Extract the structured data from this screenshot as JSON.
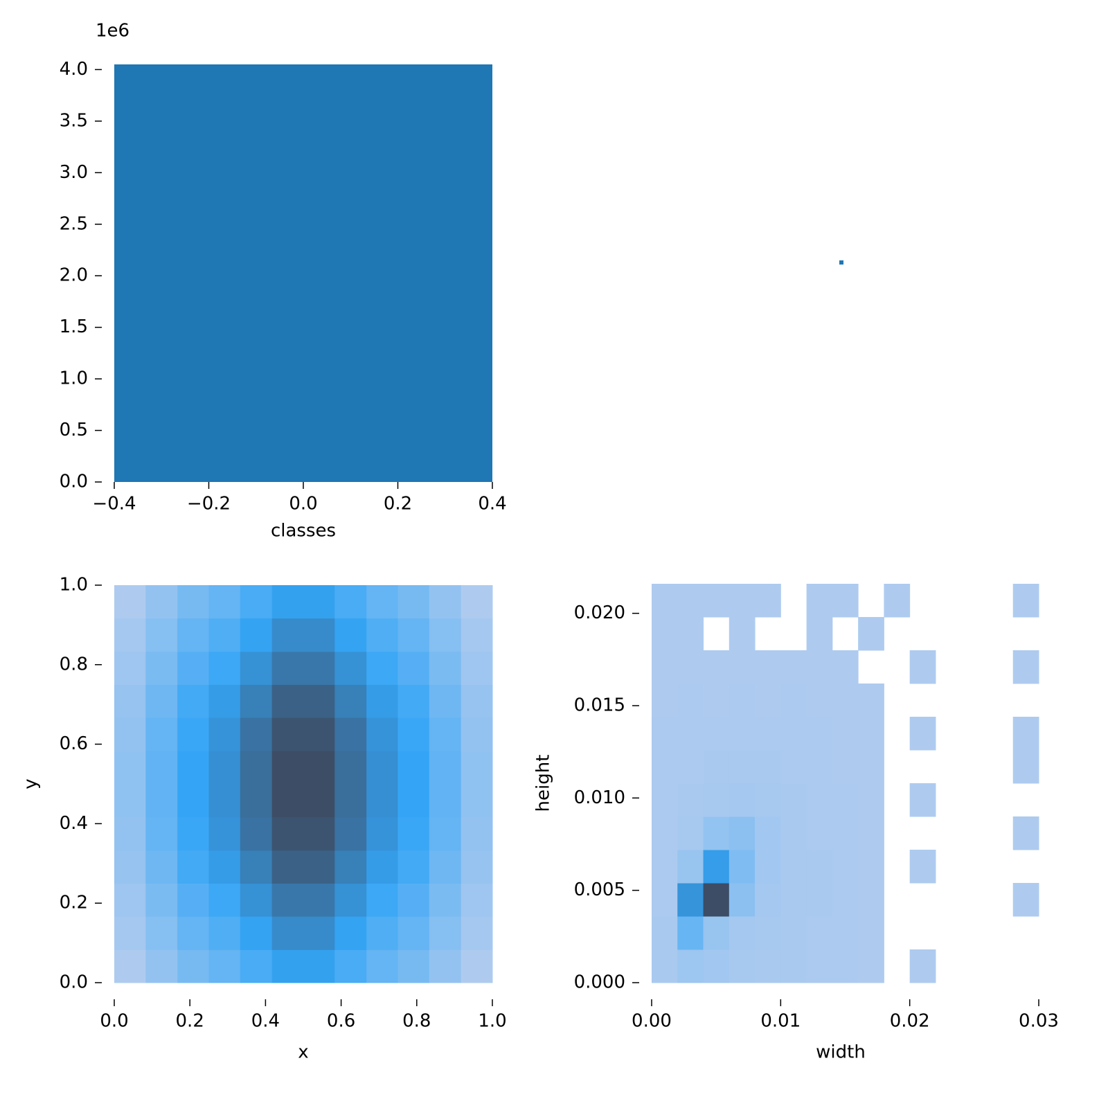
{
  "chart_data": [
    {
      "type": "histogram",
      "xlabel": "classes",
      "offset_text": "1e6",
      "bins": [
        -0.4,
        0.4
      ],
      "values": [
        4050000
      ],
      "color": "#1f77b4",
      "xlim": [
        -0.4,
        0.4
      ],
      "ylim": [
        0,
        4050000
      ],
      "xticks": [
        {
          "value": -0.4,
          "label": "−0.4"
        },
        {
          "value": -0.2,
          "label": "−0.2"
        },
        {
          "value": 0,
          "label": "0.0"
        },
        0.2,
        0.4
      ],
      "yticks": [
        {
          "value": 0,
          "label": "0.0"
        },
        {
          "value": 500000,
          "label": "0.5"
        },
        {
          "value": 1000000,
          "label": "1.0"
        },
        {
          "value": 1500000,
          "label": "1.5"
        },
        {
          "value": 2000000,
          "label": "2.0"
        },
        {
          "value": 2500000,
          "label": "2.5"
        },
        {
          "value": 3000000,
          "label": "3.0"
        },
        {
          "value": 3500000,
          "label": "3.5"
        },
        {
          "value": 4000000,
          "label": "4.0"
        }
      ]
    },
    {
      "type": "heatmap",
      "xlabel": "x",
      "ylabel": "y",
      "xbins": [
        0,
        0.083,
        0.167,
        0.25,
        0.333,
        0.417,
        0.5,
        0.583,
        0.667,
        0.75,
        0.833,
        0.917,
        1
      ],
      "ybins": [
        0,
        0.083,
        0.167,
        0.25,
        0.333,
        0.417,
        0.5,
        0.583,
        0.667,
        0.75,
        0.833,
        0.917,
        1
      ],
      "z": [
        [
          15,
          24,
          33,
          39,
          48,
          57,
          57,
          48,
          39,
          33,
          24,
          15
        ],
        [
          18,
          28,
          39,
          46,
          56,
          67,
          67,
          56,
          46,
          39,
          28,
          18
        ],
        [
          20,
          32,
          44,
          52,
          64,
          76,
          76,
          64,
          52,
          44,
          32,
          20
        ],
        [
          23,
          36,
          50,
          59,
          72,
          86,
          86,
          72,
          59,
          50,
          36,
          23
        ],
        [
          24,
          39,
          53,
          63,
          78,
          92,
          92,
          78,
          63,
          53,
          39,
          24
        ],
        [
          25,
          40,
          55,
          65,
          80,
          95,
          95,
          80,
          65,
          55,
          40,
          25
        ],
        [
          25,
          40,
          55,
          65,
          80,
          95,
          95,
          80,
          65,
          55,
          40,
          25
        ],
        [
          24,
          39,
          53,
          63,
          78,
          92,
          92,
          78,
          63,
          53,
          39,
          24
        ],
        [
          23,
          36,
          50,
          59,
          72,
          86,
          86,
          72,
          59,
          50,
          36,
          23
        ],
        [
          20,
          32,
          44,
          52,
          64,
          76,
          76,
          64,
          52,
          44,
          32,
          20
        ],
        [
          18,
          28,
          39,
          46,
          56,
          67,
          67,
          56,
          46,
          39,
          28,
          18
        ],
        [
          15,
          24,
          33,
          39,
          48,
          57,
          57,
          48,
          39,
          33,
          24,
          15
        ]
      ],
      "cmap": [
        "#aecbef",
        "#34a5f6",
        "#3d4d65"
      ],
      "vlim": [
        15,
        95
      ],
      "xlim": [
        0,
        1
      ],
      "ylim": [
        0,
        1
      ],
      "xticks": [
        {
          "value": 0,
          "label": "0.0"
        },
        0.2,
        0.4,
        0.6,
        0.8,
        {
          "value": 1,
          "label": "1.0"
        }
      ],
      "yticks": [
        {
          "value": 0,
          "label": "0.0"
        },
        0.2,
        0.4,
        0.6,
        0.8,
        {
          "value": 1,
          "label": "1.0"
        }
      ]
    },
    {
      "type": "heatmap",
      "xlabel": "width",
      "ylabel": "height",
      "xbins": [
        0,
        0.002,
        0.004,
        0.006,
        0.008,
        0.01,
        0.012,
        0.014,
        0.016,
        0.018,
        0.02,
        0.022,
        0.024,
        0.026,
        0.028,
        0.03
      ],
      "ybins": [
        0,
        0.0018,
        0.0036,
        0.0054,
        0.0072,
        0.009,
        0.0108,
        0.0126,
        0.0144,
        0.0162,
        0.018,
        0.0198,
        0.0216
      ],
      "z": [
        [
          3,
          8,
          6,
          4,
          3,
          3,
          2,
          2,
          1,
          null,
          1,
          null,
          null,
          null,
          null
        ],
        [
          3,
          30,
          10,
          5,
          4,
          3,
          2,
          2,
          1,
          null,
          null,
          null,
          null,
          null,
          null
        ],
        [
          2,
          60,
          100,
          15,
          5,
          3,
          3,
          2,
          1,
          null,
          null,
          null,
          null,
          null,
          1
        ],
        [
          2,
          10,
          55,
          20,
          6,
          3,
          3,
          2,
          1,
          null,
          1,
          null,
          null,
          null,
          null
        ],
        [
          2,
          4,
          12,
          15,
          6,
          3,
          2,
          2,
          1,
          null,
          null,
          null,
          null,
          null,
          1
        ],
        [
          2,
          3,
          4,
          5,
          4,
          3,
          2,
          2,
          1,
          null,
          1,
          null,
          null,
          null,
          null
        ],
        [
          2,
          2,
          3,
          3,
          3,
          2,
          2,
          1,
          1,
          null,
          null,
          null,
          null,
          null,
          1
        ],
        [
          2,
          2,
          2,
          2,
          2,
          2,
          2,
          1,
          1,
          null,
          1,
          null,
          null,
          null,
          1
        ],
        [
          1,
          2,
          1,
          2,
          1,
          2,
          1,
          1,
          1,
          null,
          null,
          null,
          null,
          null,
          null
        ],
        [
          1,
          1,
          1,
          1,
          1,
          1,
          1,
          1,
          null,
          null,
          1,
          null,
          null,
          null,
          1
        ],
        [
          1,
          1,
          null,
          1,
          null,
          null,
          1,
          null,
          1,
          null,
          null,
          null,
          null,
          null,
          null
        ],
        [
          1,
          1,
          1,
          1,
          1,
          null,
          1,
          1,
          null,
          1,
          null,
          null,
          null,
          null,
          1
        ]
      ],
      "cmap": [
        "#aecbef",
        "#34a5f6",
        "#3d4d65"
      ],
      "vlim": [
        1,
        100
      ],
      "xlim": [
        0,
        0.03
      ],
      "ylim": [
        0,
        0.0216
      ],
      "xticks": [
        {
          "value": 0,
          "label": "0.00"
        },
        0.01,
        0.02,
        0.03
      ],
      "yticks": [
        {
          "value": 0,
          "label": "0.000"
        },
        0.005,
        {
          "value": 0.01,
          "label": "0.010"
        },
        0.015,
        {
          "value": 0.02,
          "label": "0.020"
        }
      ]
    }
  ]
}
